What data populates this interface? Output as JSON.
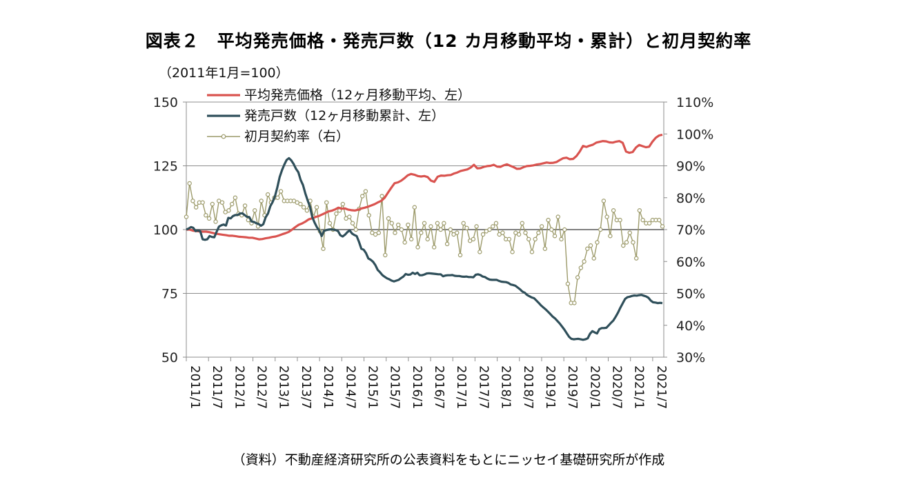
{
  "title": "図表２　平均発売価格・発売戸数（12 カ月移動平均・累計）と初月契約率",
  "source": "（資料）不動産経済研究所の公表資料をもとにニッセイ基礎研究所が作成",
  "chart_data": {
    "type": "line",
    "left_axis_unit": "（2011年1月=100）",
    "left_axis": {
      "min": 50,
      "max": 150,
      "ticks": [
        50,
        75,
        100,
        125,
        150
      ]
    },
    "right_axis": {
      "min": 30,
      "max": 110,
      "ticks": [
        "30%",
        "40%",
        "50%",
        "60%",
        "70%",
        "80%",
        "90%",
        "100%",
        "110%"
      ]
    },
    "x_tick_labels": [
      "2011/1",
      "2011/7",
      "2012/1",
      "2012/7",
      "2013/1",
      "2013/7",
      "2014/1",
      "2014/7",
      "2015/1",
      "2015/7",
      "2016/1",
      "2016/7",
      "2017/1",
      "2017/7",
      "2018/1",
      "2018/7",
      "2019/1",
      "2019/7",
      "2020/1",
      "2020/7",
      "2021/1",
      "2021/7"
    ],
    "gridlines": true,
    "legend_position": "top-left",
    "series": [
      {
        "name": "平均発売価格（12ヶ月移動平均、左）",
        "axis": "left",
        "color": "#d9534f",
        "values": [
          100,
          100,
          99.6,
          99.4,
          99.3,
          99.2,
          99.2,
          99,
          98.7,
          98.4,
          98.2,
          98,
          97.8,
          97.6,
          97.6,
          97.4,
          97.2,
          97.1,
          97,
          96.8,
          96.8,
          96.5,
          96.2,
          96.3,
          96.6,
          96.8,
          97.1,
          97.3,
          97.7,
          98.2,
          98.6,
          99.1,
          100,
          101,
          101.9,
          102.4,
          103.1,
          104,
          104.4,
          104.9,
          105.3,
          105.9,
          106.5,
          107.1,
          107.4,
          107.9,
          108.6,
          108.2,
          108.3,
          107.8,
          107.6,
          107.5,
          107.8,
          108.3,
          108.6,
          109,
          109.5,
          110,
          110.7,
          111.3,
          112.5,
          114.5,
          116.4,
          118.2,
          118.5,
          119.2,
          120.2,
          121.3,
          121.8,
          121.5,
          121,
          120.8,
          121,
          120.6,
          119.2,
          118.7,
          120.7,
          121.2,
          121.1,
          121.3,
          121.4,
          122,
          122.4,
          123,
          123.3,
          123.6,
          124.3,
          125.4,
          124,
          124.1,
          124.6,
          124.9,
          125,
          125.4,
          124.7,
          124.6,
          125.2,
          125.6,
          125,
          124.5,
          123.8,
          123.9,
          124.5,
          124.9,
          125,
          125.2,
          125.5,
          125.7,
          126,
          126.3,
          126.1,
          126.2,
          126.5,
          127.3,
          128,
          128.2,
          127.6,
          127.7,
          128.8,
          130.6,
          132.8,
          132.4,
          132.9,
          133.3,
          134.1,
          134.4,
          134.7,
          134.6,
          134.2,
          134.1,
          134.5,
          134.7,
          134,
          130.6,
          130.1,
          130.4,
          132.2,
          133.2,
          132.7,
          132.3,
          132.5,
          134.5,
          136,
          136.9,
          137.2
        ]
      },
      {
        "name": "発売戸数（12ヶ月移動累計、左）",
        "axis": "left",
        "color": "#2f4f5a",
        "values": [
          100,
          100.4,
          101,
          100.7,
          99.4,
          99.7,
          99.3,
          96.2,
          96,
          96.2,
          97.5,
          97.1,
          97,
          99.2,
          101.2,
          101.7,
          102,
          101.6,
          104.6,
          104.4,
          105.3,
          105.7,
          105.7,
          106.3,
          106.4,
          105.7,
          105,
          104.9,
          103.2,
          103,
          102.5,
          102.2,
          101.5,
          102.1,
          104.8,
          106.3,
          109.2,
          110.8,
          113.1,
          116.5,
          120.6,
          123.3,
          125.5,
          127.3,
          128,
          127.1,
          125.7,
          123.8,
          122.5,
          119.5,
          117.5,
          114.2,
          111.4,
          108.9,
          104.9,
          102.7,
          100.9,
          99.6,
          97.5,
          99.5,
          99.8,
          100,
          100.1,
          100,
          99.8,
          99.4,
          97.8,
          97.3,
          98,
          99,
          99.7,
          98.5,
          97.9,
          97.5,
          95.2,
          92.5,
          92.1,
          90.8,
          88.7,
          88.2,
          87.4,
          86.1,
          84.2,
          83.3,
          82.2,
          81.5,
          80.9,
          80.5,
          80,
          79.7,
          80,
          80.3,
          81,
          81.6,
          82.6,
          82.3,
          82.4,
          83.1,
          82.6,
          83.1,
          82.1,
          82.1,
          82.4,
          82.8,
          82.9,
          82.8,
          82.7,
          82.6,
          82.5,
          82.5,
          81.7,
          82,
          82.1,
          82.1,
          82.2,
          81.9,
          81.8,
          81.8,
          81.6,
          81.5,
          81.6,
          81.4,
          81.4,
          81.3,
          82.3,
          82.5,
          82.2,
          81.6,
          81.4,
          80.8,
          80.4,
          80.3,
          80.3,
          80.3,
          79.9,
          79.6,
          79.5,
          79.4,
          79.1,
          78.5,
          78.3,
          78,
          77.3,
          76.6,
          75.7,
          75.3,
          74.4,
          73.9,
          73.4,
          73.1,
          72.2,
          71.3,
          70.3,
          69.5,
          68.7,
          67.8,
          66.9,
          65.9,
          65.2,
          64.2,
          63.2,
          62,
          60.8,
          59.4,
          58,
          57.2,
          57,
          57.1,
          57.2,
          57,
          56.8,
          57,
          57.4,
          59.2,
          60.2,
          59.7,
          59.3,
          61,
          61.4,
          61.4,
          61.5,
          62.5,
          63.5,
          64.4,
          65.9,
          67.5,
          69.4,
          71.1,
          72.8,
          73.5,
          73.7,
          74,
          74.2,
          74.1,
          74.3,
          74.4,
          74.1,
          73.8,
          73.3,
          72.2,
          71.5,
          71.4,
          71.2,
          71.3,
          71.2
        ]
      },
      {
        "name": "初月契約率（右）",
        "axis": "right",
        "color": "#9c9a6a",
        "values": [
          74,
          84.5,
          79,
          77,
          78.5,
          78.5,
          74.5,
          73.5,
          78,
          72.5,
          79,
          78.5,
          75.5,
          76,
          78,
          80,
          75,
          74.5,
          77.5,
          73,
          72,
          76,
          71,
          79,
          74.5,
          81,
          78.5,
          80,
          80,
          82,
          79,
          79,
          79,
          79,
          78.5,
          78,
          77,
          76,
          79,
          74,
          77,
          69.5,
          64,
          78.5,
          72,
          70,
          75,
          76,
          78,
          73.5,
          74,
          72,
          70,
          76.5,
          80.5,
          82,
          74.5,
          69,
          68.5,
          69,
          80.5,
          62,
          73.5,
          72,
          69,
          71.5,
          70,
          66,
          71.5,
          67,
          77,
          64.5,
          69,
          72,
          67,
          71,
          64.5,
          72,
          70,
          72,
          65.5,
          70,
          68.5,
          69,
          62,
          72,
          70.5,
          66.5,
          67,
          71,
          63,
          68.5,
          69.5,
          70,
          71,
          72,
          68.5,
          69,
          67,
          67,
          63,
          69,
          68.5,
          72,
          69,
          67,
          63,
          67,
          69,
          71,
          64,
          73,
          70,
          68,
          74,
          67,
          70,
          53,
          47,
          47,
          55,
          58,
          60,
          64,
          65,
          61,
          66,
          70,
          79,
          74,
          68,
          76,
          73,
          73,
          65,
          66,
          69,
          66,
          61,
          76,
          73,
          72,
          72,
          73,
          73,
          73,
          71
        ]
      }
    ]
  }
}
